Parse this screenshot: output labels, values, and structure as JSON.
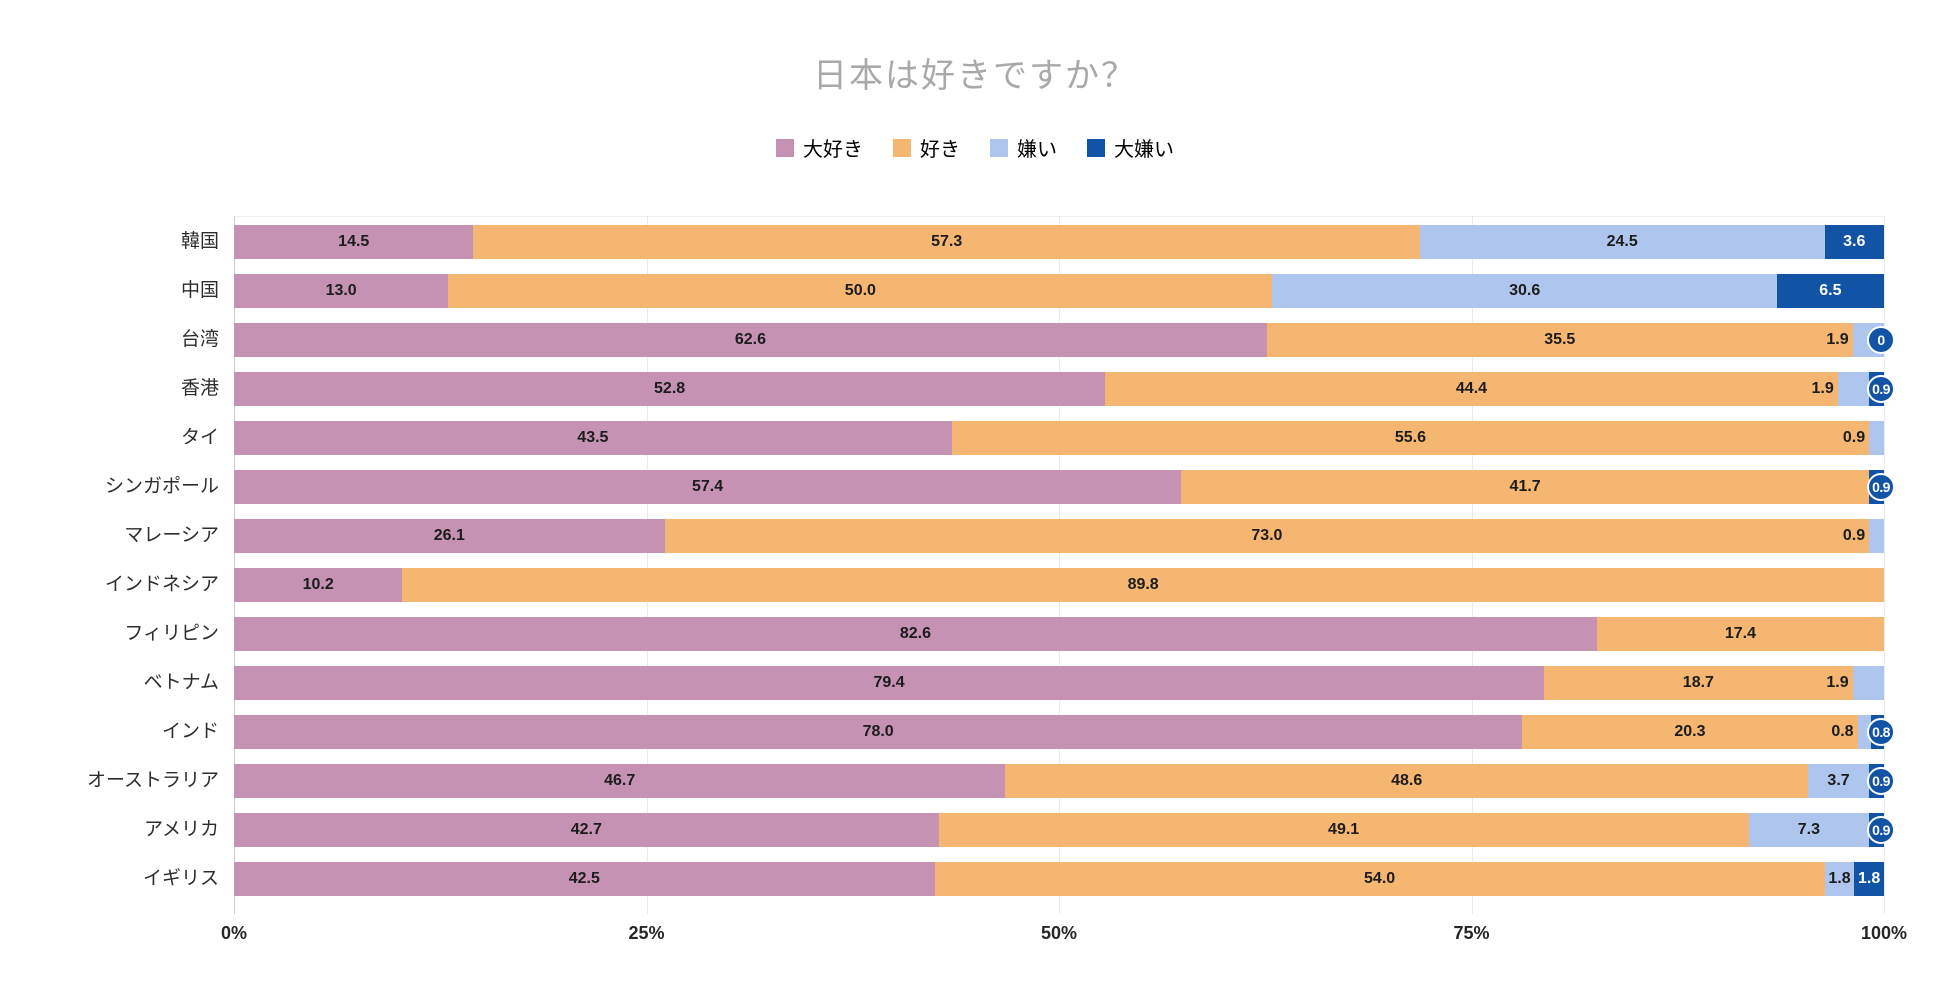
{
  "title": "日本は好きですか？",
  "legend": {
    "items": [
      {
        "label": "大好き",
        "color": "#c592b3"
      },
      {
        "label": "好き",
        "color": "#f4b670"
      },
      {
        "label": "嫌い",
        "color": "#aec6ed"
      },
      {
        "label": "大嫌い",
        "color": "#1153a4"
      }
    ]
  },
  "x_axis": {
    "ticks": [
      {
        "label": "0%",
        "pos": 0
      },
      {
        "label": "25%",
        "pos": 25
      },
      {
        "label": "50%",
        "pos": 50
      },
      {
        "label": "75%",
        "pos": 75
      },
      {
        "label": "100%",
        "pos": 100
      }
    ]
  },
  "colors": {
    "love": "#c592b3",
    "like": "#f4b670",
    "dislike": "#aec6ed",
    "hate": "#1153a4",
    "title_text": "#a9a9a9",
    "gridline": "#eaeaea",
    "axis_line": "#cccccc",
    "value_text": "#1c1c1c"
  },
  "chart_data": {
    "type": "bar",
    "orientation": "horizontal",
    "stacked": true,
    "unit": "percent",
    "title": "日本は好きですか？",
    "legend_position": "top",
    "gridlines": true,
    "xlim": [
      0,
      100
    ],
    "x_ticks": [
      "0%",
      "25%",
      "50%",
      "75%",
      "100%"
    ],
    "categories": [
      "韓国",
      "中国",
      "台湾",
      "香港",
      "タイ",
      "シンガポール",
      "マレーシア",
      "インドネシア",
      "フィリピン",
      "ベトナム",
      "インド",
      "オーストラリア",
      "アメリカ",
      "イギリス"
    ],
    "series_keys": [
      "love",
      "like",
      "dislike",
      "hate"
    ],
    "series": [
      {
        "name": "大好き",
        "color": "#c592b3",
        "values": [
          14.5,
          13.0,
          62.6,
          52.8,
          43.5,
          57.4,
          26.1,
          10.2,
          82.6,
          79.4,
          78.0,
          46.7,
          42.7,
          42.5
        ]
      },
      {
        "name": "好き",
        "color": "#f4b670",
        "values": [
          57.3,
          50.0,
          35.5,
          44.4,
          55.6,
          41.7,
          73.0,
          89.8,
          17.4,
          18.7,
          20.3,
          48.6,
          49.1,
          54.0
        ]
      },
      {
        "name": "嫌い",
        "color": "#aec6ed",
        "values": [
          24.5,
          30.6,
          1.9,
          1.9,
          0.9,
          0,
          0.9,
          0,
          0,
          1.9,
          0.8,
          3.7,
          7.3,
          1.8
        ]
      },
      {
        "name": "大嫌い",
        "color": "#1153a4",
        "values": [
          3.6,
          6.5,
          0,
          0.9,
          0,
          0.9,
          0,
          0,
          0,
          0,
          0.8,
          0.9,
          0.9,
          1.8
        ]
      }
    ],
    "label_display": [
      [
        "in",
        "in",
        "in",
        "in",
        "in",
        "in",
        "in",
        "in",
        "in",
        "in",
        "in",
        "in",
        "in",
        "in"
      ],
      [
        "in",
        "in",
        "in",
        "in",
        "in",
        "in",
        "in",
        "in",
        "in",
        "in",
        "in",
        "in",
        "in",
        "in"
      ],
      [
        "in",
        "in",
        "out",
        "out",
        "out",
        "none",
        "out",
        "none",
        "none",
        "out",
        "out",
        "in",
        "in",
        "in"
      ],
      [
        "in",
        "in",
        "badge",
        "badge",
        "none",
        "badge",
        "none",
        "none",
        "none",
        "none",
        "badge",
        "badge",
        "badge",
        "in"
      ]
    ]
  }
}
